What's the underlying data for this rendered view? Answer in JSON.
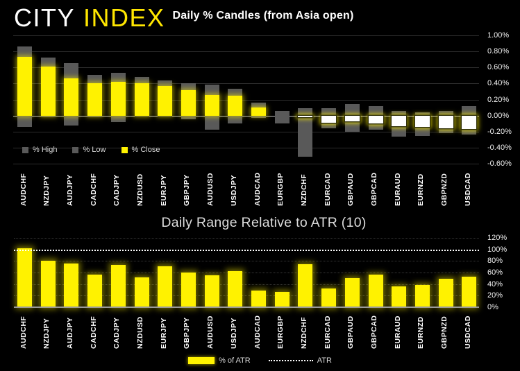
{
  "brand": {
    "word1": "CITY",
    "word2": "INDEX"
  },
  "colors": {
    "background": "#000000",
    "brand_city": "#FFFFFF",
    "brand_index": "#FFE600",
    "bar_yellow": "#FFF200",
    "range_gray": "#595959",
    "negative_close_fill": "#FFFFFF",
    "gridline": "#2D2D2D",
    "zero_line": "#C0C0C0",
    "atr_line": "#FFFFFF",
    "axis_text": "#F0F0F0",
    "title_text": "#FFFFFF",
    "subtitle_text": "#DCDCDC"
  },
  "chart_data": [
    {
      "type": "bar",
      "subtype": "high-low-close-candles",
      "title": "Daily % Candles (from Asia open)",
      "categories": [
        "AUDCHF",
        "NZDJPY",
        "AUDJPY",
        "CADCHF",
        "CADJPY",
        "NZDUSD",
        "EURJPY",
        "GBPJPY",
        "AUDUSD",
        "USDJPY",
        "AUDCAD",
        "EURGBP",
        "NZDCHF",
        "EURCAD",
        "GBPAUD",
        "GBPCAD",
        "EURAUD",
        "EURNZD",
        "GBPNZD",
        "USDCAD"
      ],
      "series": [
        {
          "name": "% High",
          "values": [
            0.86,
            0.72,
            0.65,
            0.51,
            0.53,
            0.48,
            0.44,
            0.4,
            0.39,
            0.33,
            0.16,
            0.06,
            0.09,
            0.09,
            0.14,
            0.12,
            0.06,
            0.04,
            0.06,
            0.12
          ]
        },
        {
          "name": "% Low",
          "values": [
            -0.14,
            -0.02,
            -0.12,
            -0.02,
            -0.08,
            -0.01,
            -0.01,
            -0.05,
            -0.18,
            -0.1,
            -0.03,
            -0.1,
            -0.51,
            -0.16,
            -0.2,
            -0.18,
            -0.26,
            -0.25,
            -0.22,
            -0.24
          ]
        },
        {
          "name": "% Close",
          "values": [
            0.73,
            0.61,
            0.46,
            0.4,
            0.42,
            0.4,
            0.37,
            0.32,
            0.26,
            0.25,
            0.1,
            0.0,
            -0.02,
            -0.09,
            -0.07,
            -0.1,
            -0.13,
            -0.14,
            -0.16,
            -0.17
          ]
        }
      ],
      "ylim": [
        -0.6,
        1.0
      ],
      "yticks": [
        {
          "v": 1.0,
          "label": "1.00%"
        },
        {
          "v": 0.8,
          "label": "0.80%"
        },
        {
          "v": 0.6,
          "label": "0.60%"
        },
        {
          "v": 0.4,
          "label": "0.40%"
        },
        {
          "v": 0.2,
          "label": "0.20%"
        },
        {
          "v": 0.0,
          "label": "0.00%"
        },
        {
          "v": -0.2,
          "label": "-0.20%"
        },
        {
          "v": -0.4,
          "label": "-0.40%"
        },
        {
          "v": -0.6,
          "label": "-0.60%"
        }
      ],
      "grid": true,
      "legend_position": "inside-bottom-left",
      "legend": [
        {
          "label": "% High",
          "swatch": "#595959",
          "style": "square"
        },
        {
          "label": "% Low",
          "swatch": "#595959",
          "style": "square"
        },
        {
          "label": "% Close",
          "swatch": "#FFF200",
          "style": "square"
        }
      ]
    },
    {
      "type": "bar",
      "title": "Daily Range Relative to ATR (10)",
      "categories": [
        "AUDCHF",
        "NZDJPY",
        "AUDJPY",
        "CADCHF",
        "CADJPY",
        "NZDUSD",
        "EURJPY",
        "GBPJPY",
        "AUDUSD",
        "USDJPY",
        "AUDCAD",
        "EURGBP",
        "NZDCHF",
        "EURCAD",
        "GBPAUD",
        "GBPCAD",
        "EURAUD",
        "EURNZD",
        "GBPNZD",
        "USDCAD"
      ],
      "series": [
        {
          "name": "% of ATR",
          "values": [
            102,
            80,
            76,
            57,
            73,
            52,
            71,
            60,
            55,
            62,
            29,
            27,
            74,
            32,
            50,
            56,
            36,
            38,
            49,
            53
          ]
        }
      ],
      "atr_reference_line": 100,
      "ylim": [
        0,
        120
      ],
      "yticks": [
        {
          "v": 120,
          "label": "120%"
        },
        {
          "v": 100,
          "label": "100%"
        },
        {
          "v": 80,
          "label": "80%"
        },
        {
          "v": 60,
          "label": "60%"
        },
        {
          "v": 40,
          "label": "40%"
        },
        {
          "v": 20,
          "label": "20%"
        },
        {
          "v": 0,
          "label": "0%"
        }
      ],
      "grid": "dotted",
      "legend_position": "bottom-center",
      "legend": [
        {
          "label": "% of ATR",
          "swatch": "#FFF200",
          "style": "bar"
        },
        {
          "label": "ATR",
          "swatch": "#FFFFFF",
          "style": "dotted"
        }
      ]
    }
  ]
}
